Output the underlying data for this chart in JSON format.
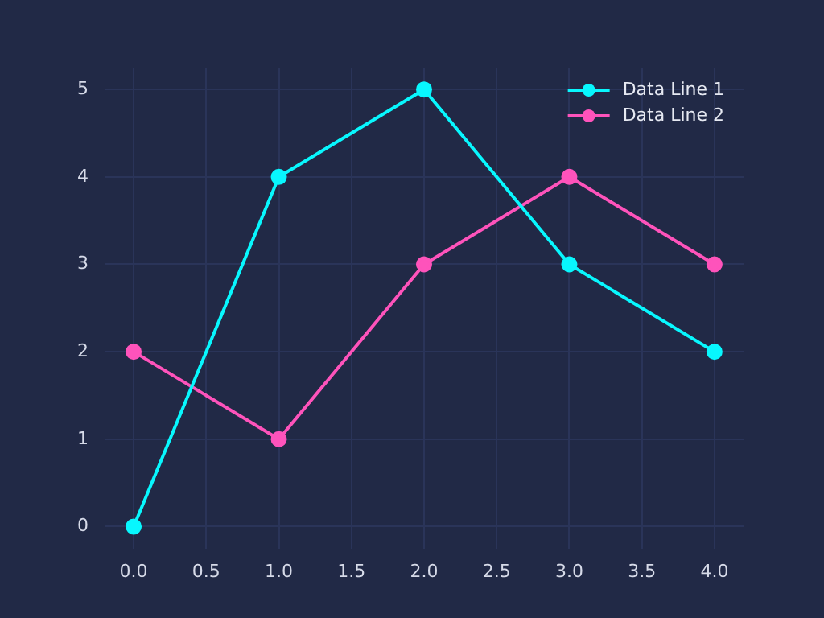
{
  "chart_data": {
    "type": "line",
    "x": [
      0,
      1,
      2,
      3,
      4
    ],
    "series": [
      {
        "name": "Data Line 1",
        "color": "#08f7fe",
        "values": [
          0,
          4,
          5,
          3,
          2
        ]
      },
      {
        "name": "Data Line 2",
        "color": "#fe53bb",
        "values": [
          2,
          1,
          3,
          4,
          3
        ]
      }
    ],
    "xlim": [
      -0.2,
      4.2
    ],
    "xticks": [
      {
        "value": 0,
        "label": "0.0"
      },
      {
        "value": 0.5,
        "label": "0.5"
      },
      {
        "value": 1,
        "label": "1.0"
      },
      {
        "value": 1.5,
        "label": "1.5"
      },
      {
        "value": 2,
        "label": "2.0"
      },
      {
        "value": 2.5,
        "label": "2.5"
      },
      {
        "value": 3,
        "label": "3.0"
      },
      {
        "value": 3.5,
        "label": "3.5"
      },
      {
        "value": 4,
        "label": "4.0"
      }
    ],
    "ylim": [
      -0.25,
      5.25
    ],
    "yticks": [
      0,
      1,
      2,
      3,
      4,
      5
    ],
    "grid": true,
    "legend": "top right",
    "marker": "circle",
    "line_style": "solid"
  }
}
